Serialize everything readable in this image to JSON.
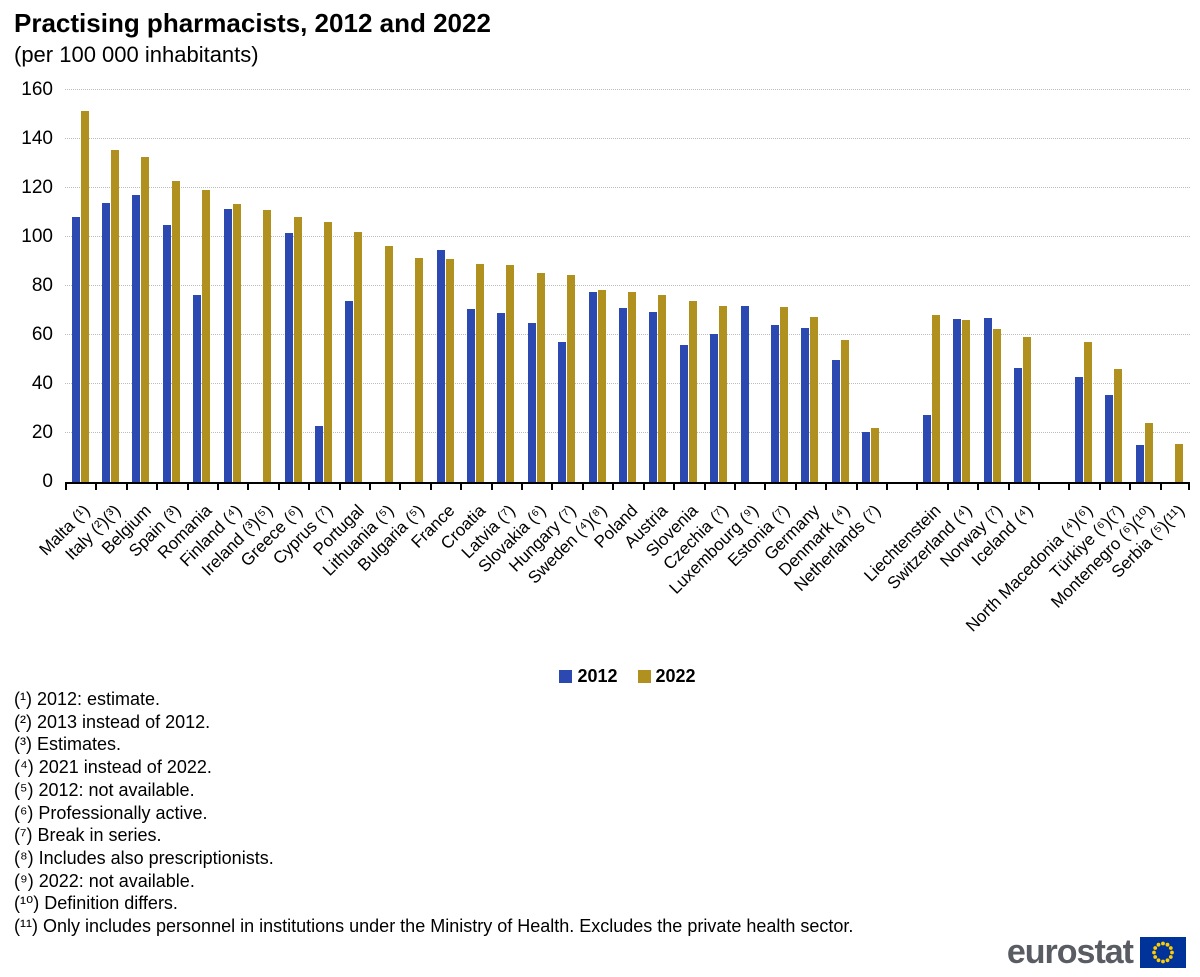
{
  "chart_data": {
    "type": "bar",
    "title": "Practising pharmacists, 2012 and 2022",
    "subtitle": "(per 100 000 inhabitants)",
    "xlabel": "",
    "ylabel": "per 100 000 inhabitants",
    "ylim": [
      0,
      160
    ],
    "yticks": [
      0,
      20,
      40,
      60,
      80,
      100,
      120,
      140,
      160
    ],
    "grid": "horizontal-dotted",
    "legend_position": "bottom-center",
    "series": [
      {
        "name": "2012",
        "color": "#2B49B0"
      },
      {
        "name": "2022",
        "color": "#B0901F"
      }
    ],
    "categories": [
      {
        "label": "Malta (¹)",
        "y2012": 108,
        "y2022": 151.5
      },
      {
        "label": "Italy (²)(³)",
        "y2012": 114,
        "y2022": 135.5
      },
      {
        "label": "Belgium",
        "y2012": 117,
        "y2022": 132.5
      },
      {
        "label": "Spain (³)",
        "y2012": 105,
        "y2022": 123
      },
      {
        "label": "Romania",
        "y2012": 76.5,
        "y2022": 119
      },
      {
        "label": "Finland (⁴)",
        "y2012": 111.5,
        "y2022": 113.5
      },
      {
        "label": "Ireland (³)(⁵)",
        "y2012": null,
        "y2022": 111
      },
      {
        "label": "Greece (⁶)",
        "y2012": 101.5,
        "y2022": 108
      },
      {
        "label": "Cyprus (⁷)",
        "y2012": 23,
        "y2022": 106
      },
      {
        "label": "Portugal",
        "y2012": 74,
        "y2022": 102
      },
      {
        "label": "Lithuania (⁵)",
        "y2012": null,
        "y2022": 96.5
      },
      {
        "label": "Bulgaria (⁵)",
        "y2012": null,
        "y2022": 91.5
      },
      {
        "label": "France",
        "y2012": 94.5,
        "y2022": 91
      },
      {
        "label": "Croatia",
        "y2012": 70.5,
        "y2022": 89
      },
      {
        "label": "Latvia (⁷)",
        "y2012": 69,
        "y2022": 88.5
      },
      {
        "label": "Slovakia (⁶)",
        "y2012": 65,
        "y2022": 85.5
      },
      {
        "label": "Hungary (⁷)",
        "y2012": 57,
        "y2022": 84.5
      },
      {
        "label": "Sweden (⁴)(⁸)",
        "y2012": 77.5,
        "y2022": 78.5
      },
      {
        "label": "Poland",
        "y2012": 71,
        "y2022": 77.5
      },
      {
        "label": "Austria",
        "y2012": 69.5,
        "y2022": 76.5
      },
      {
        "label": "Slovenia",
        "y2012": 56,
        "y2022": 74
      },
      {
        "label": "Czechia (⁷)",
        "y2012": 60.5,
        "y2022": 72
      },
      {
        "label": "Luxembourg (⁹)",
        "y2012": 72,
        "y2022": null
      },
      {
        "label": "Estonia (⁷)",
        "y2012": 64,
        "y2022": 71.5
      },
      {
        "label": "Germany",
        "y2012": 63,
        "y2022": 67.5
      },
      {
        "label": "Denmark (⁴)",
        "y2012": 50,
        "y2022": 58
      },
      {
        "label": "Netherlands (⁷)",
        "y2012": 20.5,
        "y2022": 22
      },
      {
        "label": "",
        "y2012": null,
        "y2022": null
      },
      {
        "label": "Liechtenstein",
        "y2012": 27.5,
        "y2022": 68
      },
      {
        "label": "Switzerland (⁴)",
        "y2012": 66.5,
        "y2022": 66
      },
      {
        "label": "Norway (⁷)",
        "y2012": 67,
        "y2022": 62.5
      },
      {
        "label": "Iceland (⁴)",
        "y2012": 46.5,
        "y2022": 59
      },
      {
        "label": "",
        "y2012": null,
        "y2022": null
      },
      {
        "label": "North Macedonia (⁴)(⁶)",
        "y2012": 43,
        "y2022": 57
      },
      {
        "label": "Türkiye (⁶)(⁷)",
        "y2012": 35.5,
        "y2022": 46
      },
      {
        "label": "Montenegro (⁶)(¹⁰)",
        "y2012": 15,
        "y2022": 24
      },
      {
        "label": "Serbia (⁵)(¹¹)",
        "y2012": null,
        "y2022": 15.5
      }
    ]
  },
  "footnotes": [
    "(¹) 2012: estimate.",
    "(²) 2013 instead of 2012.",
    "(³) Estimates.",
    "(⁴) 2021 instead of 2022.",
    "(⁵) 2012: not available.",
    "(⁶) Professionally active.",
    "(⁷) Break in series.",
    "(⁸) Includes also prescriptionists.",
    "(⁹) 2022: not available.",
    "(¹⁰) Definition differs.",
    "(¹¹) Only includes personnel in institutions under the Ministry of Health. Excludes the private health sector."
  ],
  "logo": {
    "text": "eurostat"
  }
}
